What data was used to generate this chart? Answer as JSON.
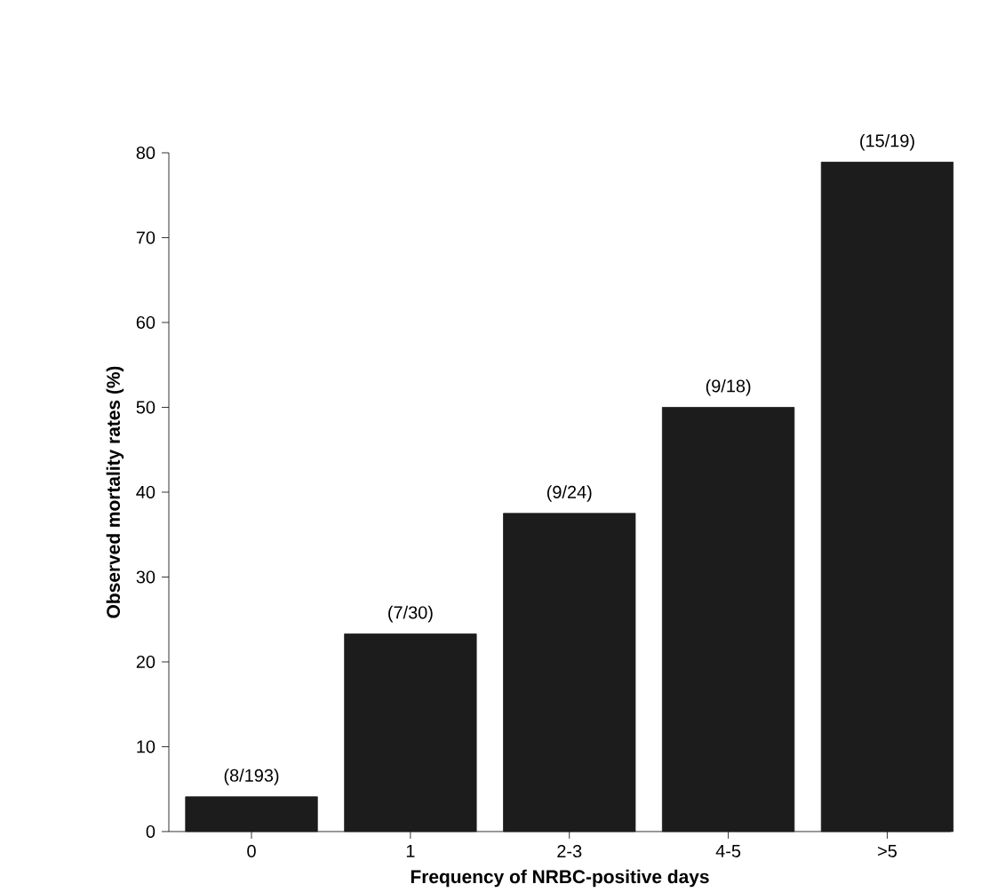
{
  "chart_data": {
    "type": "bar",
    "xlabel": "Frequency of NRBC-positive days",
    "ylabel": "Observed mortality rates (%)",
    "categories": [
      "0",
      "1",
      "2-3",
      "4-5",
      ">5"
    ],
    "values": [
      4.1,
      23.3,
      37.5,
      50,
      78.9
    ],
    "value_labels": [
      "(8/193)",
      "(7/30)",
      "(9/24)",
      "(9/18)",
      "(15/19)"
    ],
    "color": "#1c1c1c",
    "ylim": [
      0,
      80
    ],
    "yticks": [
      0,
      10,
      20,
      30,
      40,
      50,
      60,
      70,
      80
    ]
  }
}
